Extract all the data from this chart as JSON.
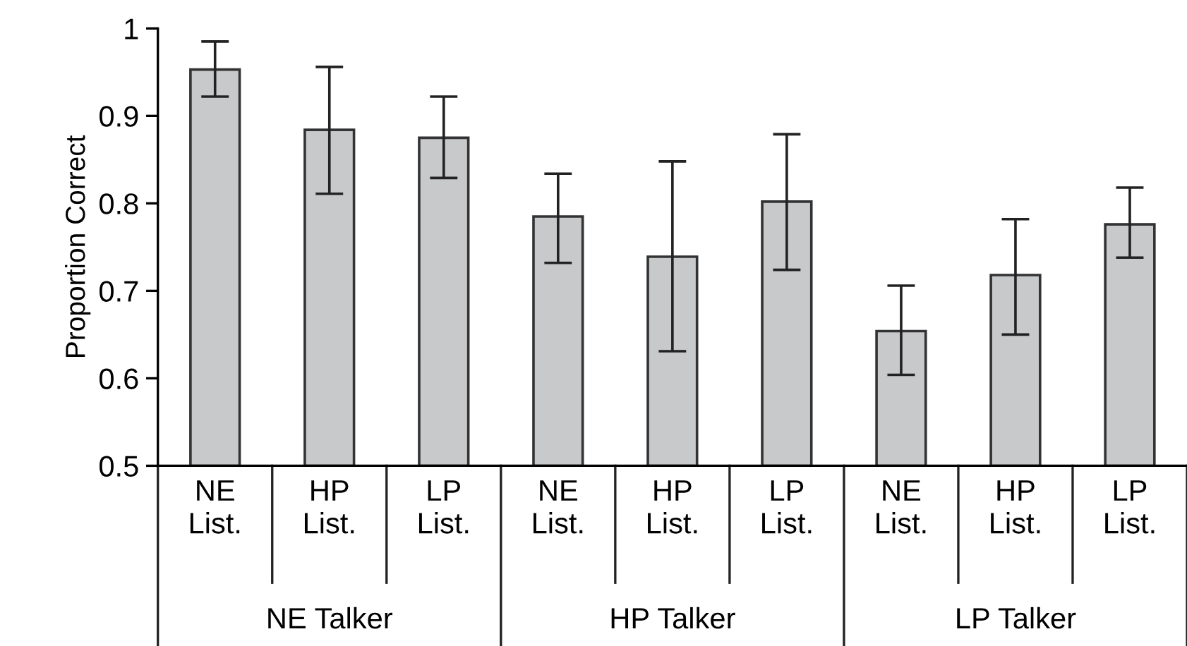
{
  "chart_data": {
    "type": "bar",
    "ylabel": "Proportion Correct",
    "categories": [
      "NE List.",
      "HP List.",
      "LP List.",
      "NE List.",
      "HP List.",
      "LP List.",
      "NE List.",
      "HP List.",
      "LP List."
    ],
    "values": [
      0.953,
      0.884,
      0.875,
      0.785,
      0.739,
      0.802,
      0.654,
      0.718,
      0.776
    ],
    "errors": [
      [
        0.922,
        0.985
      ],
      [
        0.811,
        0.956
      ],
      [
        0.829,
        0.922
      ],
      [
        0.732,
        0.834
      ],
      [
        0.631,
        0.848
      ],
      [
        0.724,
        0.879
      ],
      [
        0.604,
        0.706
      ],
      [
        0.65,
        0.782
      ],
      [
        0.738,
        0.818
      ]
    ],
    "color": "#c8c9cb",
    "ylim": [
      0.5,
      1
    ],
    "yticks": [
      0.5,
      0.6,
      0.7,
      0.8,
      0.9,
      1
    ],
    "grid": false,
    "annotations": [
      "NE Talker",
      "HP Talker",
      "LP Talker"
    ]
  }
}
